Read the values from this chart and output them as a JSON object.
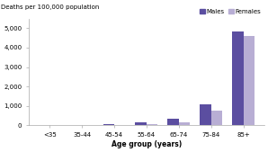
{
  "categories": [
    "<35",
    "35-44",
    "45-54",
    "55-64",
    "65-74",
    "75-84",
    "85+"
  ],
  "males": [
    5,
    15,
    75,
    170,
    360,
    1080,
    4820
  ],
  "females": [
    3,
    8,
    35,
    80,
    155,
    750,
    4620
  ],
  "male_color": "#5b4ea0",
  "female_color": "#b8aed4",
  "top_label": "Deaths per 100,000 population",
  "xlabel": "Age group (years)",
  "ylim": [
    0,
    5500
  ],
  "yticks": [
    0,
    1000,
    2000,
    3000,
    4000,
    5000
  ],
  "ytick_labels": [
    "0",
    "1,000",
    "2,000",
    "3,000",
    "4,000",
    "5,000"
  ],
  "legend_males": "Males",
  "legend_females": "Females",
  "bar_width": 0.35,
  "background_color": "#ffffff"
}
